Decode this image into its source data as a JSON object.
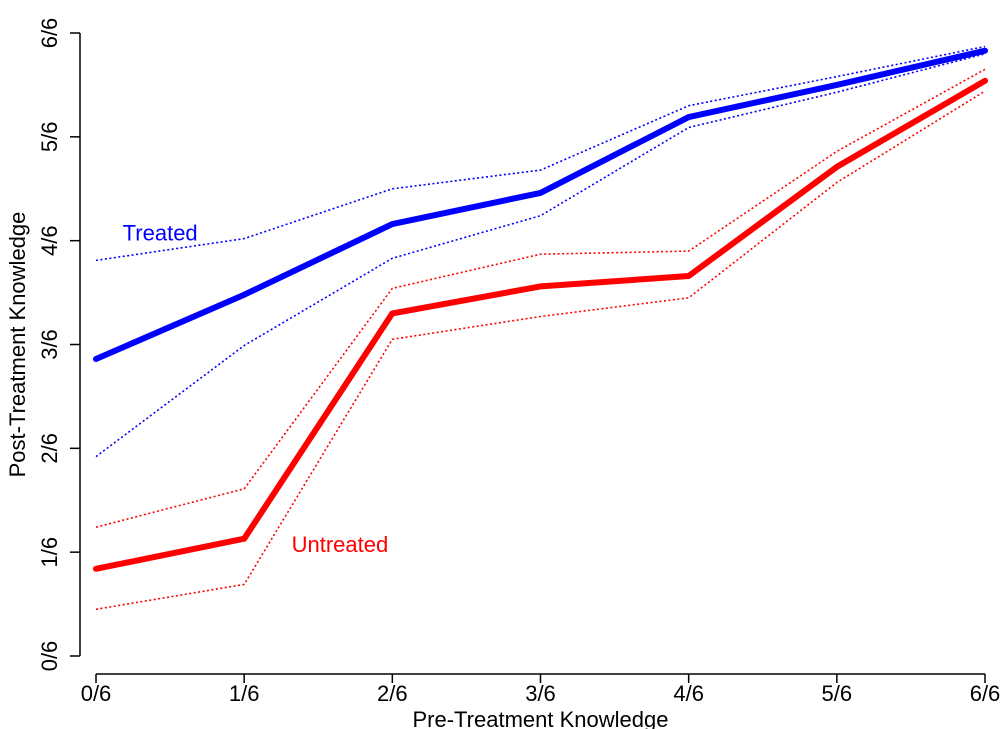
{
  "chart_data": {
    "type": "line",
    "title": "",
    "xlabel": "Pre-Treatment Knowledge",
    "ylabel": "Post-Treatment Knowledge",
    "x": [
      0,
      1,
      2,
      3,
      4,
      5,
      6
    ],
    "x_tick_labels": [
      "0/6",
      "1/6",
      "2/6",
      "3/6",
      "4/6",
      "5/6",
      "6/6"
    ],
    "y_tick_values": [
      0,
      1,
      2,
      3,
      4,
      5,
      6
    ],
    "y_tick_labels": [
      "0/6",
      "1/6",
      "2/6",
      "3/6",
      "4/6",
      "5/6",
      "6/6"
    ],
    "xlim": [
      0,
      6
    ],
    "ylim": [
      0,
      6
    ],
    "grid": false,
    "legend": "none",
    "series": [
      {
        "name": "Treated",
        "color": "#0000ff",
        "style": "solid",
        "values": [
          2.86,
          3.48,
          4.16,
          4.46,
          5.19,
          5.5,
          5.83
        ]
      },
      {
        "name": "Treated upper",
        "color": "#0000ff",
        "style": "dotted",
        "values": [
          3.81,
          4.02,
          4.5,
          4.68,
          5.3,
          5.58,
          5.87
        ]
      },
      {
        "name": "Treated lower",
        "color": "#0000ff",
        "style": "dotted",
        "values": [
          1.92,
          2.99,
          3.83,
          4.24,
          5.09,
          5.43,
          5.8
        ]
      },
      {
        "name": "Untreated",
        "color": "#ff0000",
        "style": "solid",
        "values": [
          0.84,
          1.13,
          3.3,
          3.56,
          3.66,
          4.71,
          5.54
        ]
      },
      {
        "name": "Untreated upper",
        "color": "#ff0000",
        "style": "dotted",
        "values": [
          1.24,
          1.61,
          3.54,
          3.87,
          3.9,
          4.86,
          5.65
        ]
      },
      {
        "name": "Untreated lower",
        "color": "#ff0000",
        "style": "dotted",
        "values": [
          0.45,
          0.69,
          3.05,
          3.27,
          3.45,
          4.56,
          5.44
        ]
      }
    ],
    "annotations": [
      {
        "text": "Treated",
        "color": "#0000ff"
      },
      {
        "text": "Untreated",
        "color": "#ff0000"
      }
    ]
  }
}
